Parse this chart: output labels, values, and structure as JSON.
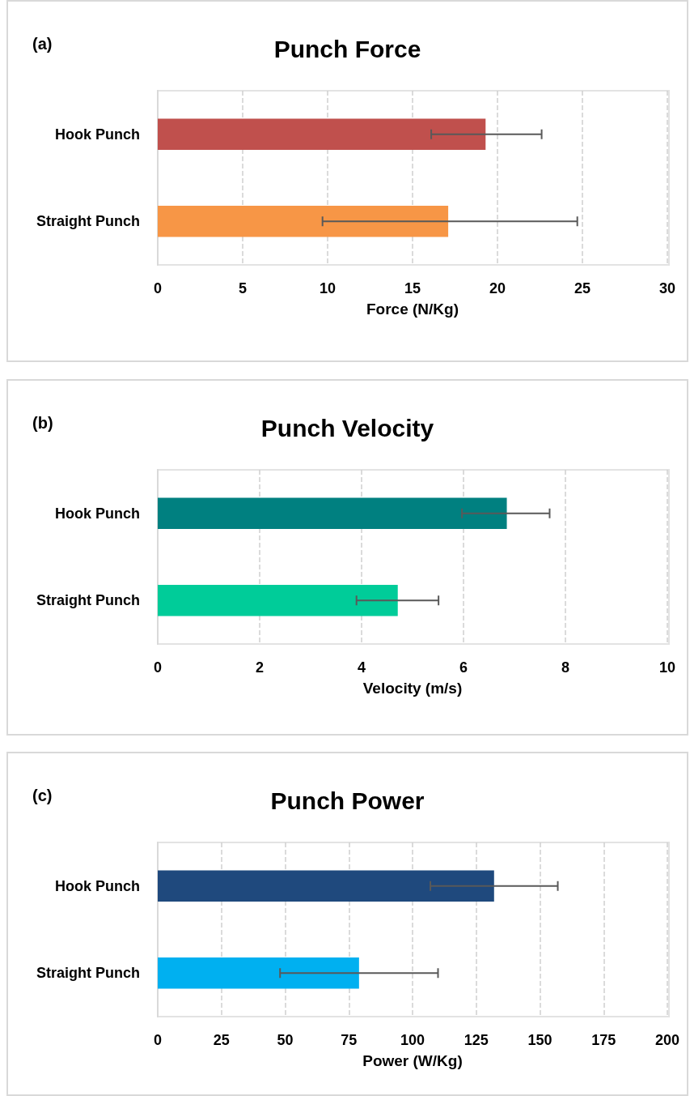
{
  "chart_data": [
    {
      "type": "bar",
      "orientation": "horizontal",
      "title": "Punch Force",
      "xlabel": "Force (N/Kg)",
      "annotations": [
        "(a)"
      ],
      "categories": [
        "Hook Punch",
        "Straight Punch"
      ],
      "values": [
        19.3,
        17.1
      ],
      "colors": [
        "#c0504d",
        "#f79646"
      ],
      "errors": [
        [
          16.1,
          22.6
        ],
        [
          9.7,
          24.7
        ]
      ],
      "xlim": [
        0,
        30
      ],
      "xticks": [
        0,
        5,
        10,
        15,
        20,
        25,
        30
      ],
      "grid": "x"
    },
    {
      "type": "bar",
      "orientation": "horizontal",
      "title": "Punch Velocity",
      "xlabel": "Velocity (m/s)",
      "annotations": [
        "(b)"
      ],
      "categories": [
        "Hook Punch",
        "Straight Punch"
      ],
      "values": [
        6.85,
        4.71
      ],
      "colors": [
        "#008080",
        "#00cc99"
      ],
      "errors": [
        [
          5.97,
          7.69
        ],
        [
          3.9,
          5.51
        ]
      ],
      "xlim": [
        0,
        10
      ],
      "xticks": [
        0,
        2,
        4,
        6,
        8,
        10
      ],
      "grid": "x"
    },
    {
      "type": "bar",
      "orientation": "horizontal",
      "title": "Punch Power",
      "xlabel": "Power (W/Kg)",
      "annotations": [
        "(c)"
      ],
      "categories": [
        "Hook Punch",
        "Straight Punch"
      ],
      "values": [
        132,
        79
      ],
      "colors": [
        "#1f497d",
        "#00b0f0"
      ],
      "errors": [
        [
          107,
          157
        ],
        [
          48,
          110
        ]
      ],
      "xlim": [
        0,
        200
      ],
      "xticks": [
        0,
        25,
        50,
        75,
        100,
        125,
        150,
        175,
        200
      ],
      "grid": "x"
    }
  ]
}
